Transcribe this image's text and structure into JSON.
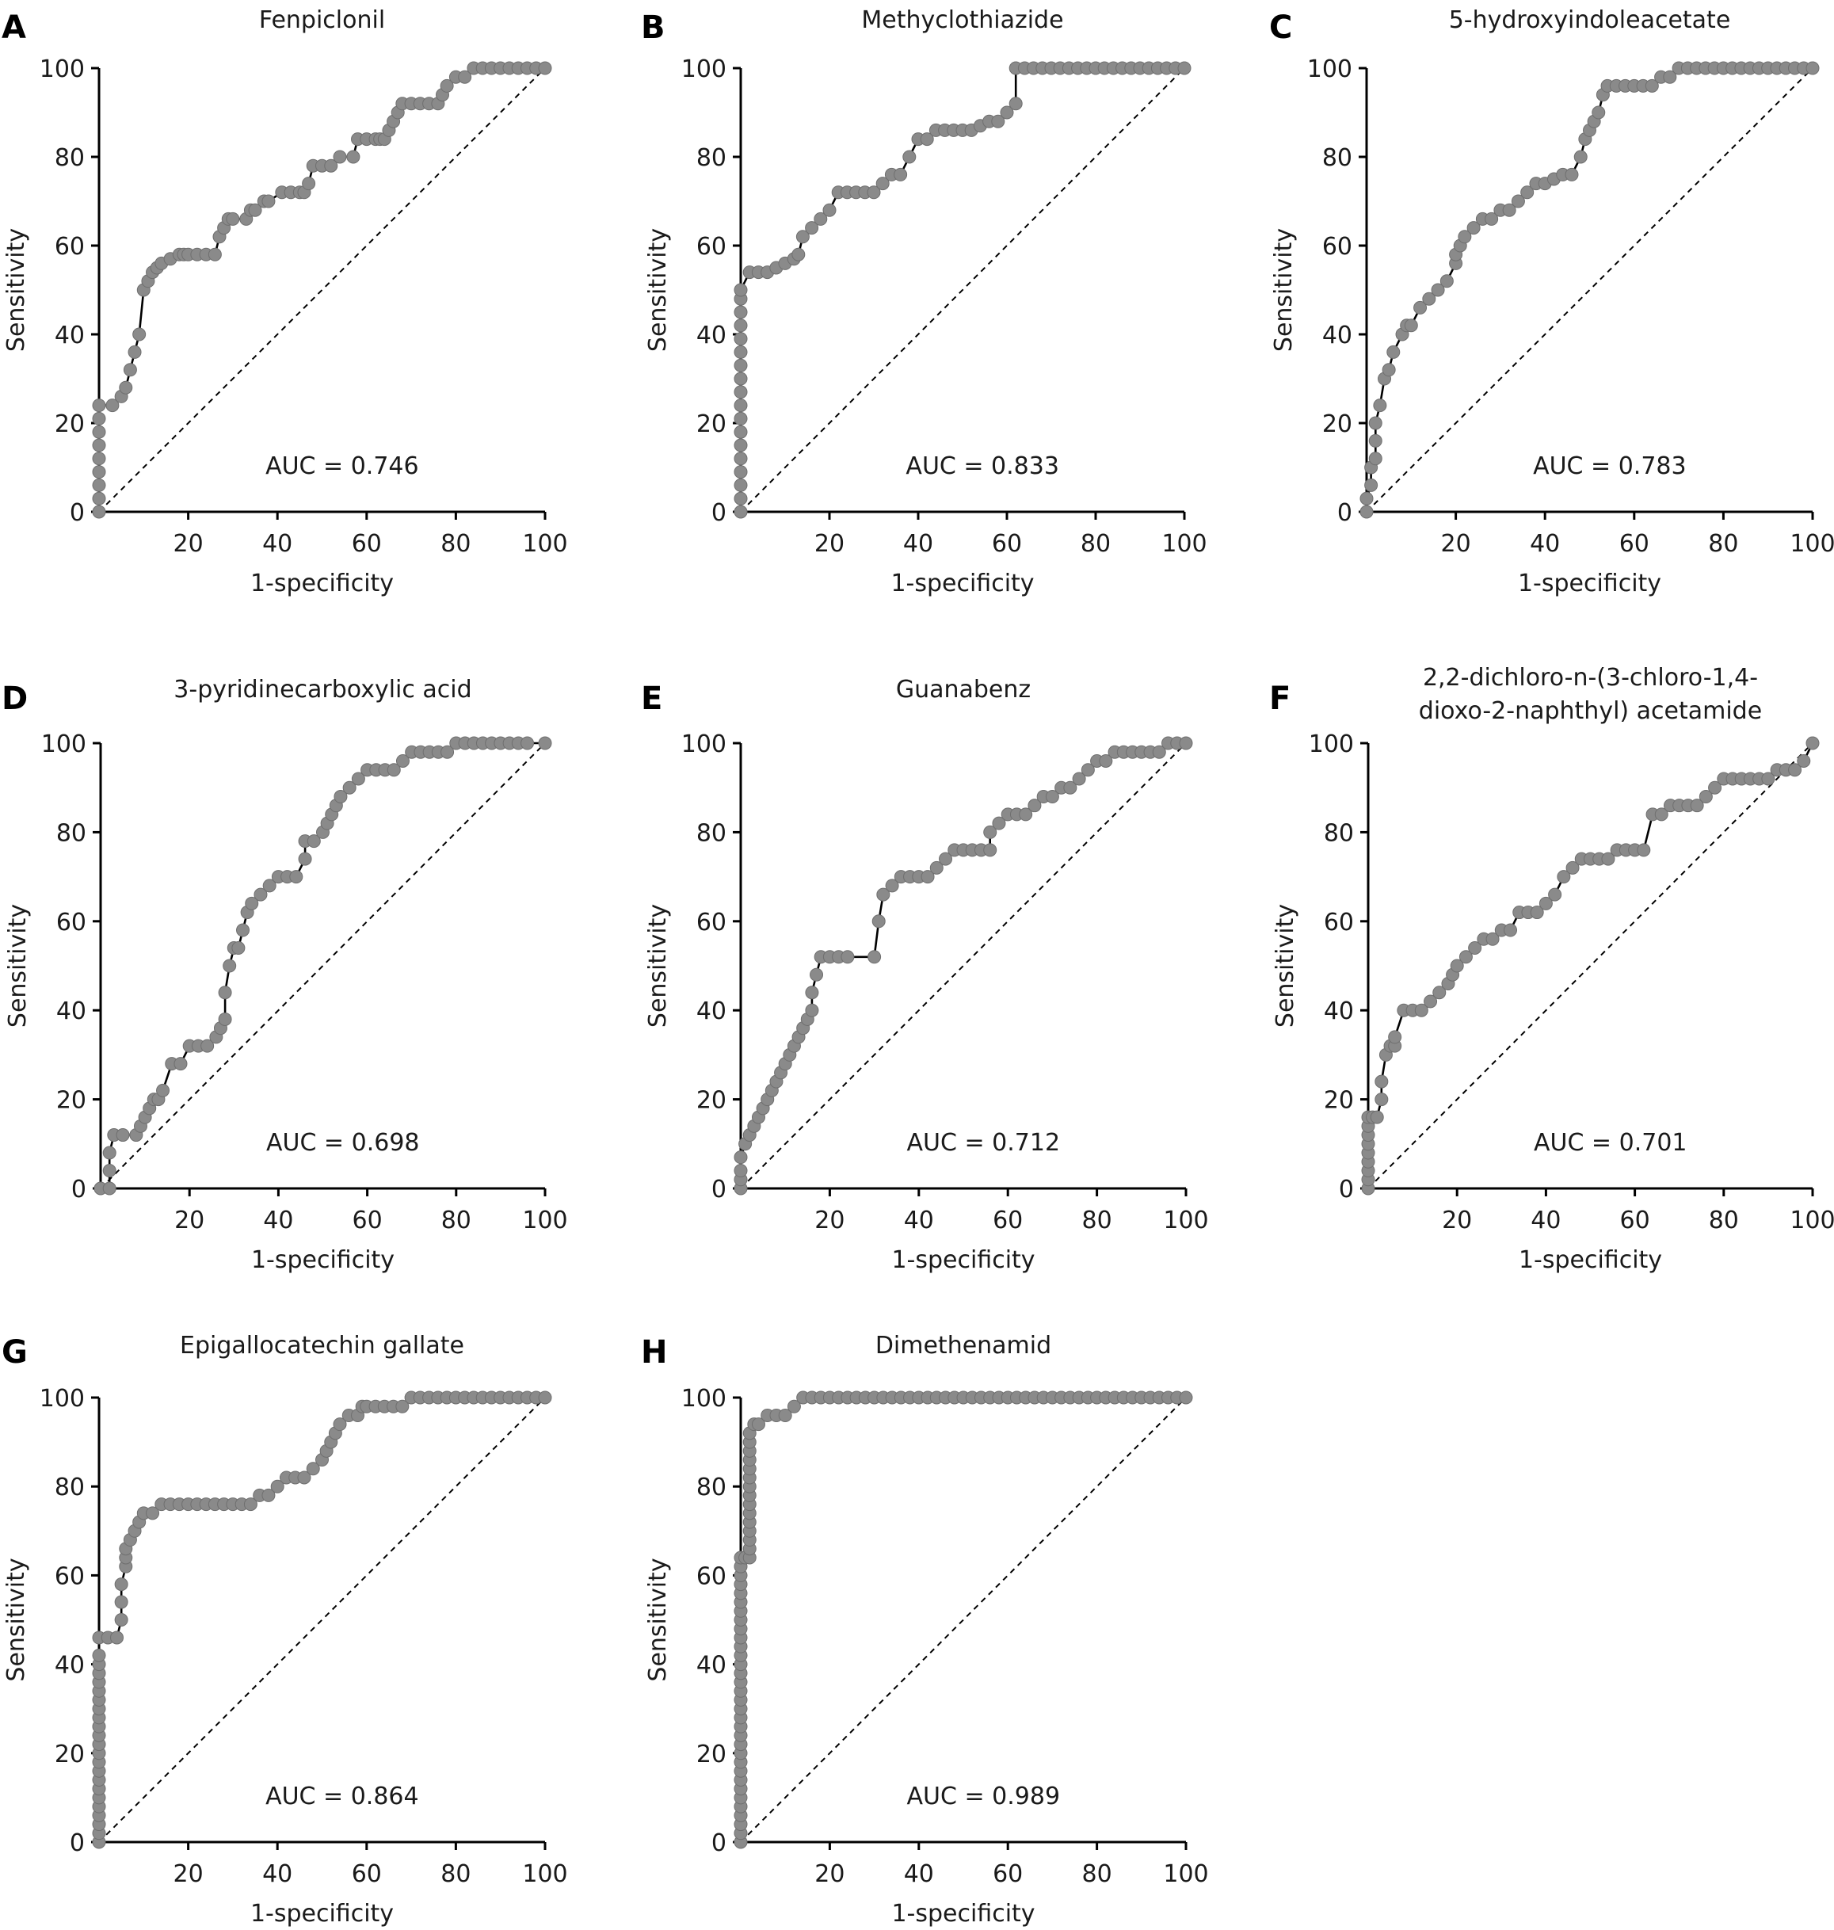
{
  "chart_data": [
    {
      "type": "line",
      "panel": "A",
      "title": "Fenpiclonil",
      "xlabel": "1-specificity",
      "ylabel": "Sensitivity",
      "xlim": [
        0,
        100
      ],
      "ylim": [
        0,
        100
      ],
      "x_ticks": [
        "20",
        "40",
        "60",
        "80",
        "100"
      ],
      "y_ticks": [
        "0",
        "20",
        "40",
        "60",
        "80",
        "100"
      ],
      "annotation": "AUC = 0.746",
      "x": [
        0,
        0,
        0,
        0,
        0,
        0,
        0,
        0,
        0,
        3,
        5,
        6,
        7,
        8,
        9,
        10,
        11,
        12,
        13,
        14,
        16,
        18,
        19,
        20,
        22,
        24,
        26,
        27,
        28,
        29,
        30,
        33,
        34,
        35,
        37,
        38,
        41,
        43,
        45,
        46,
        47,
        48,
        50,
        52,
        54,
        57,
        58,
        60,
        62,
        63,
        64,
        65,
        66,
        67,
        68,
        70,
        72,
        74,
        76,
        77,
        78,
        80,
        82,
        84,
        86,
        88,
        90,
        92,
        94,
        96,
        98,
        100
      ],
      "y": [
        0,
        3,
        6,
        9,
        12,
        15,
        18,
        21,
        24,
        24,
        26,
        28,
        32,
        36,
        40,
        50,
        52,
        54,
        55,
        56,
        57,
        58,
        58,
        58,
        58,
        58,
        58,
        62,
        64,
        66,
        66,
        66,
        68,
        68,
        70,
        70,
        72,
        72,
        72,
        72,
        74,
        78,
        78,
        78,
        80,
        80,
        84,
        84,
        84,
        84,
        84,
        86,
        88,
        90,
        92,
        92,
        92,
        92,
        92,
        94,
        96,
        98,
        98,
        100,
        100,
        100,
        100,
        100,
        100,
        100,
        100,
        100
      ]
    },
    {
      "type": "line",
      "panel": "B",
      "title": "Methyclothiazide",
      "xlabel": "1-specificity",
      "ylabel": "Sensitivity",
      "xlim": [
        0,
        100
      ],
      "ylim": [
        0,
        100
      ],
      "x_ticks": [
        "20",
        "40",
        "60",
        "80",
        "100"
      ],
      "y_ticks": [
        "0",
        "20",
        "40",
        "60",
        "80",
        "100"
      ],
      "annotation": "AUC = 0.833",
      "x": [
        0,
        0,
        0,
        0,
        0,
        0,
        0,
        0,
        0,
        0,
        0,
        0,
        0,
        0,
        0,
        0,
        0,
        0,
        2,
        4,
        6,
        8,
        10,
        12,
        13,
        14,
        16,
        18,
        20,
        22,
        24,
        26,
        28,
        30,
        32,
        34,
        36,
        38,
        40,
        42,
        44,
        46,
        48,
        50,
        52,
        54,
        56,
        58,
        60,
        62,
        62,
        64,
        66,
        68,
        70,
        72,
        74,
        76,
        78,
        80,
        82,
        84,
        86,
        88,
        90,
        92,
        94,
        96,
        98,
        100
      ],
      "y": [
        0,
        3,
        6,
        9,
        12,
        15,
        18,
        21,
        24,
        27,
        30,
        33,
        36,
        39,
        42,
        45,
        48,
        50,
        54,
        54,
        54,
        55,
        56,
        57,
        58,
        62,
        64,
        66,
        68,
        72,
        72,
        72,
        72,
        72,
        74,
        76,
        76,
        80,
        84,
        84,
        86,
        86,
        86,
        86,
        86,
        87,
        88,
        88,
        90,
        92,
        100,
        100,
        100,
        100,
        100,
        100,
        100,
        100,
        100,
        100,
        100,
        100,
        100,
        100,
        100,
        100,
        100,
        100,
        100,
        100
      ]
    },
    {
      "type": "line",
      "panel": "C",
      "title": "5-hydroxyindoleacetate",
      "xlabel": "1-specificity",
      "ylabel": "Sensitivity",
      "xlim": [
        0,
        100
      ],
      "ylim": [
        0,
        100
      ],
      "x_ticks": [
        "20",
        "40",
        "60",
        "80",
        "100"
      ],
      "y_ticks": [
        "0",
        "20",
        "40",
        "60",
        "80",
        "100"
      ],
      "annotation": "AUC = 0.783",
      "x": [
        0,
        0,
        1,
        1,
        2,
        2,
        2,
        3,
        4,
        5,
        6,
        8,
        9,
        10,
        12,
        14,
        16,
        18,
        20,
        20,
        21,
        22,
        24,
        26,
        28,
        30,
        32,
        34,
        36,
        38,
        40,
        42,
        44,
        46,
        48,
        49,
        50,
        51,
        52,
        53,
        54,
        56,
        58,
        60,
        62,
        64,
        66,
        68,
        70,
        72,
        74,
        76,
        78,
        80,
        82,
        84,
        86,
        88,
        90,
        92,
        94,
        96,
        98,
        100
      ],
      "y": [
        0,
        3,
        6,
        10,
        12,
        16,
        20,
        24,
        30,
        32,
        36,
        40,
        42,
        42,
        46,
        48,
        50,
        52,
        56,
        58,
        60,
        62,
        64,
        66,
        66,
        68,
        68,
        70,
        72,
        74,
        74,
        75,
        76,
        76,
        80,
        84,
        86,
        88,
        90,
        94,
        96,
        96,
        96,
        96,
        96,
        96,
        98,
        98,
        100,
        100,
        100,
        100,
        100,
        100,
        100,
        100,
        100,
        100,
        100,
        100,
        100,
        100,
        100,
        100
      ]
    },
    {
      "type": "line",
      "panel": "D",
      "title": "3-pyridinecarboxylic acid",
      "xlabel": "1-specificity",
      "ylabel": "Sensitivity",
      "xlim": [
        0,
        100
      ],
      "ylim": [
        0,
        100
      ],
      "x_ticks": [
        "20",
        "40",
        "60",
        "80",
        "100"
      ],
      "y_ticks": [
        "0",
        "20",
        "40",
        "60",
        "80",
        "100"
      ],
      "annotation": "AUC = 0.698",
      "x": [
        0,
        2,
        2,
        2,
        3,
        5,
        8,
        9,
        10,
        11,
        12,
        13,
        14,
        16,
        18,
        20,
        22,
        24,
        26,
        27,
        28,
        28,
        29,
        30,
        31,
        32,
        33,
        34,
        36,
        38,
        40,
        42,
        44,
        46,
        46,
        48,
        50,
        51,
        52,
        53,
        54,
        56,
        58,
        60,
        62,
        64,
        66,
        68,
        70,
        72,
        74,
        76,
        78,
        80,
        82,
        84,
        86,
        88,
        90,
        92,
        94,
        96,
        100
      ],
      "y": [
        0,
        0,
        4,
        8,
        12,
        12,
        12,
        14,
        16,
        18,
        20,
        20,
        22,
        28,
        28,
        32,
        32,
        32,
        34,
        36,
        38,
        44,
        50,
        54,
        54,
        58,
        62,
        64,
        66,
        68,
        70,
        70,
        70,
        74,
        78,
        78,
        80,
        82,
        84,
        86,
        88,
        90,
        92,
        94,
        94,
        94,
        94,
        96,
        98,
        98,
        98,
        98,
        98,
        100,
        100,
        100,
        100,
        100,
        100,
        100,
        100,
        100,
        100
      ]
    },
    {
      "type": "line",
      "panel": "E",
      "title": "Guanabenz",
      "xlabel": "1-specificity",
      "ylabel": "Sensitivity",
      "xlim": [
        0,
        100
      ],
      "ylim": [
        0,
        100
      ],
      "x_ticks": [
        "20",
        "40",
        "60",
        "80",
        "100"
      ],
      "y_ticks": [
        "0",
        "20",
        "40",
        "60",
        "80",
        "100"
      ],
      "annotation": "AUC = 0.712",
      "x": [
        0,
        0,
        0,
        0,
        1,
        2,
        3,
        4,
        5,
        6,
        7,
        8,
        9,
        10,
        11,
        12,
        13,
        14,
        15,
        16,
        16,
        17,
        18,
        20,
        22,
        24,
        30,
        31,
        32,
        34,
        36,
        38,
        40,
        42,
        44,
        46,
        48,
        50,
        52,
        54,
        56,
        56,
        58,
        60,
        62,
        64,
        66,
        68,
        70,
        72,
        74,
        76,
        78,
        80,
        82,
        84,
        86,
        88,
        90,
        92,
        94,
        96,
        98,
        100
      ],
      "y": [
        0,
        2,
        4,
        7,
        10,
        12,
        14,
        16,
        18,
        20,
        22,
        24,
        26,
        28,
        30,
        32,
        34,
        36,
        38,
        40,
        44,
        48,
        52,
        52,
        52,
        52,
        52,
        60,
        66,
        68,
        70,
        70,
        70,
        70,
        72,
        74,
        76,
        76,
        76,
        76,
        76,
        80,
        82,
        84,
        84,
        84,
        86,
        88,
        88,
        90,
        90,
        92,
        94,
        96,
        96,
        98,
        98,
        98,
        98,
        98,
        98,
        100,
        100,
        100
      ]
    },
    {
      "type": "line",
      "panel": "F",
      "title": "2,2-dichloro-n-(3-chloro-1,4-dioxo-2-naphthyl) acetamide",
      "xlabel": "1-specificity",
      "ylabel": "Sensitivity",
      "xlim": [
        0,
        100
      ],
      "ylim": [
        0,
        100
      ],
      "x_ticks": [
        "20",
        "40",
        "60",
        "80",
        "100"
      ],
      "y_ticks": [
        "0",
        "20",
        "40",
        "60",
        "80",
        "100"
      ],
      "annotation": "AUC = 0.701",
      "x": [
        0,
        0,
        0,
        0,
        0,
        0,
        0,
        0,
        0,
        1,
        2,
        3,
        3,
        4,
        5,
        6,
        6,
        8,
        10,
        12,
        14,
        16,
        18,
        19,
        20,
        22,
        24,
        26,
        28,
        30,
        32,
        34,
        36,
        38,
        40,
        42,
        44,
        46,
        48,
        50,
        52,
        54,
        56,
        58,
        60,
        62,
        64,
        66,
        68,
        70,
        72,
        74,
        76,
        78,
        80,
        82,
        84,
        86,
        88,
        90,
        92,
        94,
        96,
        98,
        100
      ],
      "y": [
        0,
        2,
        4,
        6,
        8,
        10,
        12,
        14,
        16,
        16,
        16,
        20,
        24,
        30,
        32,
        32,
        34,
        40,
        40,
        40,
        42,
        44,
        46,
        48,
        50,
        52,
        54,
        56,
        56,
        58,
        58,
        62,
        62,
        62,
        64,
        66,
        70,
        72,
        74,
        74,
        74,
        74,
        76,
        76,
        76,
        76,
        84,
        84,
        86,
        86,
        86,
        86,
        88,
        90,
        92,
        92,
        92,
        92,
        92,
        92,
        94,
        94,
        94,
        96,
        100
      ]
    },
    {
      "type": "line",
      "panel": "G",
      "title": "Epigallocatechin gallate",
      "xlabel": "1-specificity",
      "ylabel": "Sensitivity",
      "xlim": [
        0,
        100
      ],
      "ylim": [
        0,
        100
      ],
      "x_ticks": [
        "20",
        "40",
        "60",
        "80",
        "100"
      ],
      "y_ticks": [
        "0",
        "20",
        "40",
        "60",
        "80",
        "100"
      ],
      "annotation": "AUC = 0.864",
      "x": [
        0,
        0,
        0,
        0,
        0,
        0,
        0,
        0,
        0,
        0,
        0,
        0,
        0,
        0,
        0,
        0,
        0,
        0,
        0,
        0,
        0,
        0,
        0,
        2,
        4,
        5,
        5,
        5,
        6,
        6,
        6,
        7,
        8,
        9,
        10,
        12,
        14,
        16,
        18,
        20,
        22,
        24,
        26,
        28,
        30,
        32,
        34,
        36,
        38,
        40,
        42,
        44,
        46,
        48,
        50,
        51,
        52,
        53,
        54,
        56,
        58,
        59,
        60,
        62,
        64,
        66,
        68,
        70,
        72,
        74,
        76,
        78,
        80,
        82,
        84,
        86,
        88,
        90,
        92,
        94,
        96,
        98,
        100
      ],
      "y": [
        0,
        2,
        4,
        6,
        8,
        10,
        12,
        14,
        16,
        18,
        20,
        22,
        24,
        26,
        28,
        30,
        32,
        34,
        36,
        38,
        40,
        42,
        46,
        46,
        46,
        50,
        54,
        58,
        62,
        64,
        66,
        68,
        70,
        72,
        74,
        74,
        76,
        76,
        76,
        76,
        76,
        76,
        76,
        76,
        76,
        76,
        76,
        78,
        78,
        80,
        82,
        82,
        82,
        84,
        86,
        88,
        90,
        92,
        94,
        96,
        96,
        98,
        98,
        98,
        98,
        98,
        98,
        100,
        100,
        100,
        100,
        100,
        100,
        100,
        100,
        100,
        100,
        100,
        100,
        100,
        100,
        100,
        100
      ]
    },
    {
      "type": "line",
      "panel": "H",
      "title": "Dimethenamid",
      "xlabel": "1-specificity",
      "ylabel": "Sensitivity",
      "xlim": [
        0,
        100
      ],
      "ylim": [
        0,
        100
      ],
      "x_ticks": [
        "20",
        "40",
        "60",
        "80",
        "100"
      ],
      "y_ticks": [
        "0",
        "20",
        "40",
        "60",
        "80",
        "100"
      ],
      "annotation": "AUC = 0.989",
      "x": [
        0,
        0,
        0,
        0,
        0,
        0,
        0,
        0,
        0,
        0,
        0,
        0,
        0,
        0,
        0,
        0,
        0,
        0,
        0,
        0,
        0,
        0,
        0,
        0,
        0,
        0,
        0,
        0,
        0,
        0,
        0,
        0,
        0,
        1,
        2,
        2,
        2,
        2,
        2,
        2,
        2,
        2,
        2,
        2,
        2,
        2,
        2,
        2,
        2,
        3,
        4,
        6,
        8,
        10,
        12,
        14,
        16,
        18,
        20,
        22,
        24,
        26,
        28,
        30,
        32,
        34,
        36,
        38,
        40,
        42,
        44,
        46,
        48,
        50,
        52,
        54,
        56,
        58,
        60,
        62,
        64,
        66,
        68,
        70,
        72,
        74,
        76,
        78,
        80,
        82,
        84,
        86,
        88,
        90,
        92,
        94,
        96,
        98,
        100
      ],
      "y": [
        0,
        2,
        4,
        6,
        8,
        10,
        12,
        14,
        16,
        18,
        20,
        22,
        24,
        26,
        28,
        30,
        32,
        34,
        36,
        38,
        40,
        42,
        44,
        46,
        48,
        50,
        52,
        54,
        56,
        58,
        60,
        62,
        64,
        64,
        64,
        66,
        68,
        70,
        72,
        74,
        76,
        78,
        80,
        82,
        84,
        86,
        88,
        90,
        92,
        94,
        94,
        96,
        96,
        96,
        98,
        100,
        100,
        100,
        100,
        100,
        100,
        100,
        100,
        100,
        100,
        100,
        100,
        100,
        100,
        100,
        100,
        100,
        100,
        100,
        100,
        100,
        100,
        100,
        100,
        100,
        100,
        100,
        100,
        100,
        100,
        100,
        100,
        100,
        100,
        100,
        100,
        100,
        100,
        100,
        100,
        100,
        100,
        100,
        100
      ]
    }
  ]
}
